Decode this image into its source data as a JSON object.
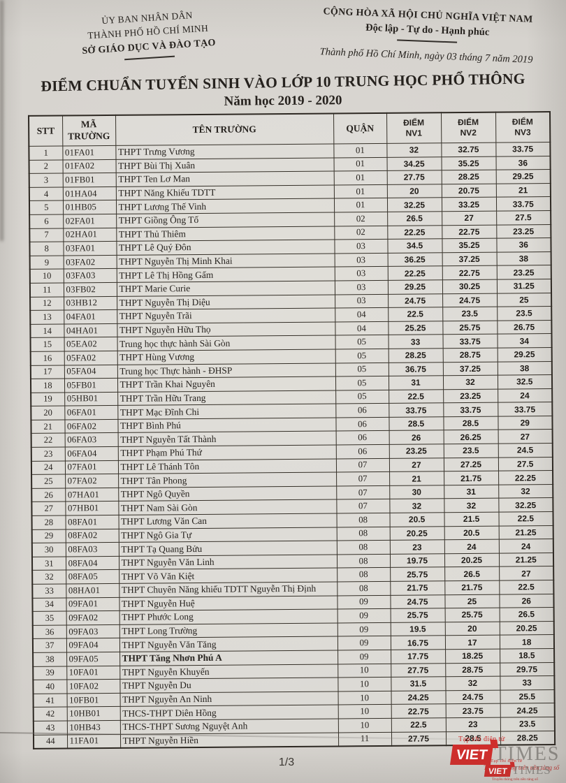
{
  "letterhead": {
    "issuer_line1": "ỦY BAN NHÂN DÂN",
    "issuer_line2": "THÀNH PHỐ HỒ CHÍ MINH",
    "issuer_line3": "SỞ GIÁO DỤC VÀ ĐÀO TẠO",
    "motto_line1": "CỘNG HÒA XÃ HỘI CHỦ NGHĨA VIỆT NAM",
    "motto_line2": "Độc lập - Tự do - Hạnh phúc",
    "dateline": "Thành phố Hồ Chí Minh, ngày 03 tháng 7 năm 2019"
  },
  "title": {
    "main": "ĐIỂM CHUẨN TUYỂN SINH VÀO LỚP 10 TRUNG HỌC PHỔ THÔNG",
    "subtitle": "Năm học 2019 - 2020"
  },
  "table": {
    "headers": {
      "stt": "STT",
      "code_line1": "MÃ",
      "code_line2": "TRƯỜNG",
      "name": "TÊN TRƯỜNG",
      "district": "QUẬN",
      "nv1_line1": "ĐIỂM",
      "nv1_line2": "NV1",
      "nv2_line1": "ĐIỂM",
      "nv2_line2": "NV2",
      "nv3_line1": "ĐIỂM",
      "nv3_line2": "NV3"
    },
    "rows": [
      {
        "stt": "1",
        "code": "01FA01",
        "name": "THPT Trưng Vương",
        "district": "01",
        "nv1": "32",
        "nv2": "32.75",
        "nv3": "33.75"
      },
      {
        "stt": "2",
        "code": "01FA02",
        "name": "THPT Bùi Thị Xuân",
        "district": "01",
        "nv1": "34.25",
        "nv2": "35.25",
        "nv3": "36"
      },
      {
        "stt": "3",
        "code": "01FB01",
        "name": "THPT Ten Lơ Man",
        "district": "01",
        "nv1": "27.75",
        "nv2": "28.25",
        "nv3": "29.25"
      },
      {
        "stt": "4",
        "code": "01HA04",
        "name": "THPT Năng Khiếu TDTT",
        "district": "01",
        "nv1": "20",
        "nv2": "20.75",
        "nv3": "21"
      },
      {
        "stt": "5",
        "code": "01HB05",
        "name": "THPT Lương Thế Vinh",
        "district": "01",
        "nv1": "32.25",
        "nv2": "33.25",
        "nv3": "33.75"
      },
      {
        "stt": "6",
        "code": "02FA01",
        "name": "THPT Giồng Ông Tố",
        "district": "02",
        "nv1": "26.5",
        "nv2": "27",
        "nv3": "27.5"
      },
      {
        "stt": "7",
        "code": "02HA01",
        "name": "THPT Thủ Thiêm",
        "district": "02",
        "nv1": "22.25",
        "nv2": "22.75",
        "nv3": "23.25"
      },
      {
        "stt": "8",
        "code": "03FA01",
        "name": "THPT Lê Quý Đôn",
        "district": "03",
        "nv1": "34.5",
        "nv2": "35.25",
        "nv3": "36"
      },
      {
        "stt": "9",
        "code": "03FA02",
        "name": "THPT Nguyễn Thị Minh Khai",
        "district": "03",
        "nv1": "36.25",
        "nv2": "37.25",
        "nv3": "38"
      },
      {
        "stt": "10",
        "code": "03FA03",
        "name": "THPT Lê Thị Hồng Gấm",
        "district": "03",
        "nv1": "22.25",
        "nv2": "22.75",
        "nv3": "23.25"
      },
      {
        "stt": "11",
        "code": "03FB02",
        "name": "THPT Marie Curie",
        "district": "03",
        "nv1": "29.25",
        "nv2": "30.25",
        "nv3": "31.25"
      },
      {
        "stt": "12",
        "code": "03HB12",
        "name": "THPT Nguyễn Thị Diệu",
        "district": "03",
        "nv1": "24.75",
        "nv2": "24.75",
        "nv3": "25"
      },
      {
        "stt": "13",
        "code": "04FA01",
        "name": "THPT Nguyễn Trãi",
        "district": "04",
        "nv1": "22.5",
        "nv2": "23.5",
        "nv3": "23.5"
      },
      {
        "stt": "14",
        "code": "04HA01",
        "name": "THPT Nguyễn Hữu Thọ",
        "district": "04",
        "nv1": "25.25",
        "nv2": "25.75",
        "nv3": "26.75"
      },
      {
        "stt": "15",
        "code": "05EA02",
        "name": "Trung học thực hành Sài Gòn",
        "district": "05",
        "nv1": "33",
        "nv2": "33.75",
        "nv3": "34"
      },
      {
        "stt": "16",
        "code": "05FA02",
        "name": "THPT Hùng Vương",
        "district": "05",
        "nv1": "28.25",
        "nv2": "28.75",
        "nv3": "29.25"
      },
      {
        "stt": "17",
        "code": "05FA04",
        "name": "Trung học Thực hành - ĐHSP",
        "district": "05",
        "nv1": "36.75",
        "nv2": "37.25",
        "nv3": "38"
      },
      {
        "stt": "18",
        "code": "05FB01",
        "name": "THPT Trần Khai Nguyên",
        "district": "05",
        "nv1": "31",
        "nv2": "32",
        "nv3": "32.5"
      },
      {
        "stt": "19",
        "code": "05HB01",
        "name": "THPT Trần Hữu Trang",
        "district": "05",
        "nv1": "22.5",
        "nv2": "23.25",
        "nv3": "24"
      },
      {
        "stt": "20",
        "code": "06FA01",
        "name": "THPT Mạc Đĩnh Chi",
        "district": "06",
        "nv1": "33.75",
        "nv2": "33.75",
        "nv3": "33.75"
      },
      {
        "stt": "21",
        "code": "06FA02",
        "name": "THPT Bình Phú",
        "district": "06",
        "nv1": "28.5",
        "nv2": "28.5",
        "nv3": "29"
      },
      {
        "stt": "22",
        "code": "06FA03",
        "name": "THPT Nguyễn Tất Thành",
        "district": "06",
        "nv1": "26",
        "nv2": "26.25",
        "nv3": "27"
      },
      {
        "stt": "23",
        "code": "06FA04",
        "name": "THPT Phạm Phú Thứ",
        "district": "06",
        "nv1": "23.25",
        "nv2": "23.5",
        "nv3": "24.5"
      },
      {
        "stt": "24",
        "code": "07FA01",
        "name": "THPT Lê Thánh Tôn",
        "district": "07",
        "nv1": "27",
        "nv2": "27.25",
        "nv3": "27.5"
      },
      {
        "stt": "25",
        "code": "07FA02",
        "name": "THPT Tân Phong",
        "district": "07",
        "nv1": "21",
        "nv2": "21.75",
        "nv3": "22.25"
      },
      {
        "stt": "26",
        "code": "07HA01",
        "name": "THPT Ngô Quyền",
        "district": "07",
        "nv1": "30",
        "nv2": "31",
        "nv3": "32"
      },
      {
        "stt": "27",
        "code": "07HB01",
        "name": "THPT Nam Sài Gòn",
        "district": "07",
        "nv1": "32",
        "nv2": "32",
        "nv3": "32.25"
      },
      {
        "stt": "28",
        "code": "08FA01",
        "name": "THPT Lương Văn Can",
        "district": "08",
        "nv1": "20.5",
        "nv2": "21.5",
        "nv3": "22.5"
      },
      {
        "stt": "29",
        "code": "08FA02",
        "name": "THPT Ngô Gia Tự",
        "district": "08",
        "nv1": "20.25",
        "nv2": "20.5",
        "nv3": "21.25"
      },
      {
        "stt": "30",
        "code": "08FA03",
        "name": "THPT Tạ Quang Bửu",
        "district": "08",
        "nv1": "23",
        "nv2": "24",
        "nv3": "24"
      },
      {
        "stt": "31",
        "code": "08FA04",
        "name": "THPT Nguyễn Văn Linh",
        "district": "08",
        "nv1": "19.75",
        "nv2": "20.25",
        "nv3": "21.25"
      },
      {
        "stt": "32",
        "code": "08FA05",
        "name": "THPT Võ Văn Kiệt",
        "district": "08",
        "nv1": "25.75",
        "nv2": "26.5",
        "nv3": "27"
      },
      {
        "stt": "33",
        "code": "08HA01",
        "name": "THPT Chuyên Năng khiếu TDTT Nguyễn Thị Định",
        "district": "08",
        "nv1": "21.75",
        "nv2": "21.75",
        "nv3": "22.5"
      },
      {
        "stt": "34",
        "code": "09FA01",
        "name": "THPT Nguyễn Huệ",
        "district": "09",
        "nv1": "24.75",
        "nv2": "25",
        "nv3": "26"
      },
      {
        "stt": "35",
        "code": "09FA02",
        "name": "THPT Phước Long",
        "district": "09",
        "nv1": "25.75",
        "nv2": "25.75",
        "nv3": "26.5"
      },
      {
        "stt": "36",
        "code": "09FA03",
        "name": "THPT Long Trường",
        "district": "09",
        "nv1": "19.5",
        "nv2": "20",
        "nv3": "20.25"
      },
      {
        "stt": "37",
        "code": "09FA04",
        "name": "THPT Nguyễn Văn Tăng",
        "district": "09",
        "nv1": "16.75",
        "nv2": "17",
        "nv3": "18"
      },
      {
        "stt": "38",
        "code": "09FA05",
        "name": "THPT Tăng Nhơn Phú A",
        "district": "09",
        "nv1": "17.75",
        "nv2": "18.25",
        "nv3": "18.5",
        "bold": true
      },
      {
        "stt": "39",
        "code": "10FA01",
        "name": "THPT Nguyễn Khuyến",
        "district": "10",
        "nv1": "27.75",
        "nv2": "28.75",
        "nv3": "29.75"
      },
      {
        "stt": "40",
        "code": "10FA02",
        "name": "THPT Nguyễn Du",
        "district": "10",
        "nv1": "31.5",
        "nv2": "32",
        "nv3": "33"
      },
      {
        "stt": "41",
        "code": "10FB01",
        "name": "THPT Nguyễn An Ninh",
        "district": "10",
        "nv1": "24.25",
        "nv2": "24.75",
        "nv3": "25.5"
      },
      {
        "stt": "42",
        "code": "10HB01",
        "name": "THCS-THPT Diên Hồng",
        "district": "10",
        "nv1": "22.75",
        "nv2": "23.75",
        "nv3": "24.25"
      },
      {
        "stt": "43",
        "code": "10HB43",
        "name": "THCS-THPT Sương Nguyệt Anh",
        "district": "10",
        "nv1": "22.5",
        "nv2": "23",
        "nv3": "23.5"
      },
      {
        "stt": "44",
        "code": "11FA01",
        "name": "THPT Nguyễn Hiền",
        "district": "11",
        "nv1": "27.75",
        "nv2": "28.5",
        "nv3": "28.25"
      }
    ]
  },
  "footer": {
    "page_number": "1/3"
  },
  "watermark": {
    "tagline": "Tạp chí điện tử",
    "brand_viet": "VIET",
    "brand_times": "TIMES",
    "slogan": "Truyền thông trên nền tảng số"
  }
}
